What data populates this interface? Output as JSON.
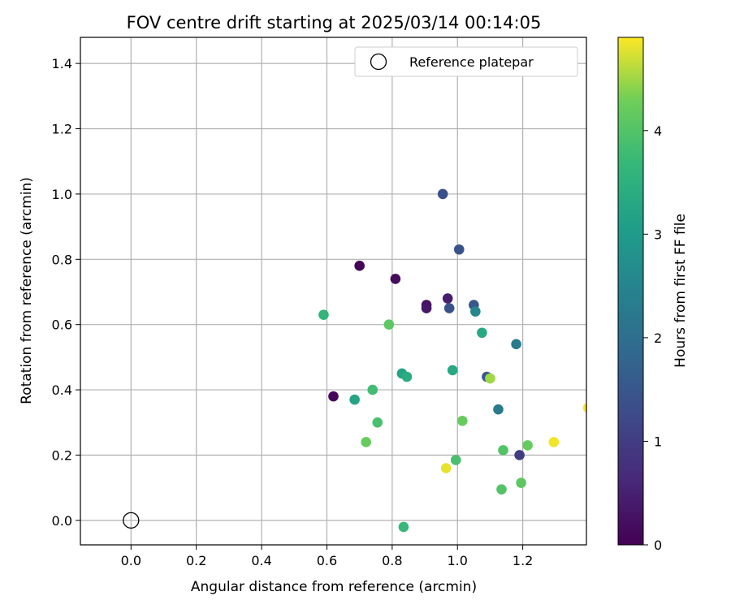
{
  "chart_data": {
    "type": "scatter",
    "title": "FOV centre drift starting at 2025/03/14 00:14:05",
    "xlabel": "Angular distance from reference (arcmin)",
    "ylabel": "Rotation from reference (arcmin)",
    "xlim": [
      -0.155,
      1.395
    ],
    "ylim": [
      -0.075,
      1.48
    ],
    "xticks": [
      0.0,
      0.2,
      0.4,
      0.6,
      0.8,
      1.0,
      1.2
    ],
    "yticks": [
      0.0,
      0.2,
      0.4,
      0.6,
      0.8,
      1.0,
      1.2,
      1.4
    ],
    "grid": true,
    "legend": {
      "position": "top-right",
      "entries": [
        "Reference platepar"
      ]
    },
    "reference_point": {
      "name": "Reference platepar",
      "x": 0.0,
      "y": 0.0
    },
    "colorbar": {
      "label": "Hours from first FF file",
      "colormap": "viridis",
      "range": [
        0,
        4.9
      ],
      "ticks": [
        0,
        1,
        2,
        3,
        4
      ]
    },
    "points": [
      {
        "x": 0.7,
        "y": 0.78,
        "c": 0.05
      },
      {
        "x": 0.81,
        "y": 0.74,
        "c": 0.15
      },
      {
        "x": 0.62,
        "y": 0.38,
        "c": 0.1
      },
      {
        "x": 0.905,
        "y": 0.66,
        "c": 0.25
      },
      {
        "x": 0.905,
        "y": 0.65,
        "c": 0.35
      },
      {
        "x": 0.97,
        "y": 0.68,
        "c": 0.45
      },
      {
        "x": 0.955,
        "y": 1.0,
        "c": 1.35
      },
      {
        "x": 1.005,
        "y": 0.83,
        "c": 1.45
      },
      {
        "x": 0.975,
        "y": 0.65,
        "c": 1.4
      },
      {
        "x": 1.05,
        "y": 0.66,
        "c": 1.5
      },
      {
        "x": 1.19,
        "y": 0.2,
        "c": 1.0
      },
      {
        "x": 1.09,
        "y": 0.44,
        "c": 1.55
      },
      {
        "x": 1.055,
        "y": 0.64,
        "c": 2.55
      },
      {
        "x": 1.18,
        "y": 0.54,
        "c": 2.3
      },
      {
        "x": 1.125,
        "y": 0.34,
        "c": 2.25
      },
      {
        "x": 1.075,
        "y": 0.575,
        "c": 3.3
      },
      {
        "x": 0.985,
        "y": 0.46,
        "c": 3.3
      },
      {
        "x": 0.83,
        "y": 0.45,
        "c": 3.2
      },
      {
        "x": 0.845,
        "y": 0.44,
        "c": 3.4
      },
      {
        "x": 0.685,
        "y": 0.37,
        "c": 3.2
      },
      {
        "x": 0.59,
        "y": 0.63,
        "c": 3.6
      },
      {
        "x": 0.74,
        "y": 0.4,
        "c": 3.8
      },
      {
        "x": 0.755,
        "y": 0.3,
        "c": 3.9
      },
      {
        "x": 0.79,
        "y": 0.6,
        "c": 4.1
      },
      {
        "x": 0.72,
        "y": 0.24,
        "c": 4.2
      },
      {
        "x": 0.835,
        "y": -0.02,
        "c": 3.7
      },
      {
        "x": 0.995,
        "y": 0.185,
        "c": 3.9
      },
      {
        "x": 1.015,
        "y": 0.305,
        "c": 4.2
      },
      {
        "x": 1.1,
        "y": 0.435,
        "c": 4.5
      },
      {
        "x": 1.14,
        "y": 0.215,
        "c": 4.0
      },
      {
        "x": 1.135,
        "y": 0.095,
        "c": 4.0
      },
      {
        "x": 1.195,
        "y": 0.115,
        "c": 4.1
      },
      {
        "x": 1.215,
        "y": 0.23,
        "c": 4.2
      },
      {
        "x": 0.965,
        "y": 0.16,
        "c": 4.8
      },
      {
        "x": 1.295,
        "y": 0.24,
        "c": 4.85
      },
      {
        "x": 1.4,
        "y": 0.345,
        "c": 4.9
      }
    ]
  }
}
